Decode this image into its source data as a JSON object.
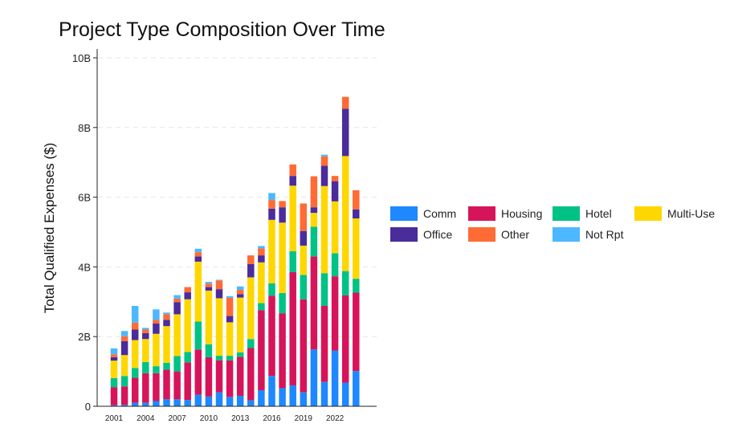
{
  "chart_data": {
    "type": "bar",
    "stacked": true,
    "title": "Project Type Composition Over Time",
    "xlabel": "",
    "ylabel": "Total Qualified Expenses ($)",
    "ylim": [
      0,
      10000000000
    ],
    "yticks": [
      0,
      2000000000,
      4000000000,
      6000000000,
      8000000000,
      10000000000
    ],
    "ytick_labels": [
      "0",
      "2B",
      "4B",
      "6B",
      "8B",
      "10B"
    ],
    "grid": "horizontal dashed",
    "legend_placement": "right",
    "categories": [
      "2001",
      "2002",
      "2003",
      "2004",
      "2005",
      "2006",
      "2007",
      "2008",
      "2009",
      "2010",
      "2011",
      "2012",
      "2013",
      "2014",
      "2015",
      "2016",
      "2017",
      "2018",
      "2019",
      "2020",
      "2021",
      "2022",
      "2023",
      "2024"
    ],
    "xtick_labels": [
      "2001",
      "",
      "",
      "2004",
      "",
      "",
      "2007",
      "",
      "",
      "2010",
      "",
      "",
      "2013",
      "",
      "",
      "2016",
      "",
      "",
      "2019",
      "",
      "",
      "2022",
      "",
      ""
    ],
    "series": [
      {
        "name": "Comm",
        "color": "#1E88FF",
        "values": [
          0.03,
          0.04,
          0.1,
          0.1,
          0.15,
          0.2,
          0.2,
          0.18,
          0.33,
          0.28,
          0.4,
          0.27,
          0.3,
          0.17,
          0.46,
          0.87,
          0.52,
          0.6,
          0.4,
          1.63,
          0.7,
          1.6,
          0.68,
          1.01
        ]
      },
      {
        "name": "Housing",
        "color": "#D6145A",
        "values": [
          0.52,
          0.53,
          0.72,
          0.85,
          0.8,
          0.85,
          0.8,
          1.08,
          1.3,
          1.13,
          0.92,
          1.05,
          1.12,
          1.5,
          2.3,
          2.3,
          2.15,
          3.25,
          2.67,
          2.67,
          2.18,
          2.13,
          2.5,
          2.25
        ]
      },
      {
        "name": "Hotel",
        "color": "#00C285",
        "values": [
          0.26,
          0.3,
          0.28,
          0.32,
          0.2,
          0.2,
          0.44,
          0.3,
          0.8,
          0.37,
          0.13,
          0.13,
          0.13,
          0.26,
          0.2,
          0.36,
          0.58,
          0.6,
          0.7,
          0.85,
          0.94,
          0.66,
          0.7,
          0.4
        ]
      },
      {
        "name": "Multi-Use",
        "color": "#FFD700",
        "values": [
          0.5,
          0.6,
          0.8,
          0.66,
          0.93,
          1.05,
          1.2,
          1.51,
          1.72,
          1.54,
          1.65,
          0.96,
          1.57,
          1.77,
          1.17,
          1.82,
          2.02,
          1.88,
          0.84,
          0.4,
          2.5,
          1.49,
          3.3,
          1.73
        ]
      },
      {
        "name": "Office",
        "color": "#4A2C9A",
        "values": [
          0.1,
          0.4,
          0.3,
          0.17,
          0.3,
          0.18,
          0.35,
          0.2,
          0.15,
          0.1,
          0.26,
          0.18,
          0.1,
          0.38,
          0.2,
          0.32,
          0.44,
          0.28,
          0.42,
          0.16,
          0.58,
          0.58,
          1.36,
          0.26
        ]
      },
      {
        "name": "Other",
        "color": "#FF6B35",
        "values": [
          0.08,
          0.14,
          0.2,
          0.1,
          0.1,
          0.16,
          0.1,
          0.15,
          0.12,
          0.1,
          0.25,
          0.52,
          0.12,
          0.25,
          0.2,
          0.25,
          0.18,
          0.33,
          0.79,
          0.89,
          0.27,
          0.15,
          0.34,
          0.55
        ]
      },
      {
        "name": "Not Rpt",
        "color": "#4DB8FF",
        "values": [
          0.17,
          0.15,
          0.48,
          0.05,
          0.3,
          0.05,
          0.1,
          0.0,
          0.1,
          0.05,
          0.02,
          0.05,
          0.1,
          0.0,
          0.07,
          0.2,
          0.0,
          0.0,
          0.0,
          0.0,
          0.05,
          0.0,
          0.0,
          0.0
        ]
      }
    ],
    "value_unit": "B"
  }
}
